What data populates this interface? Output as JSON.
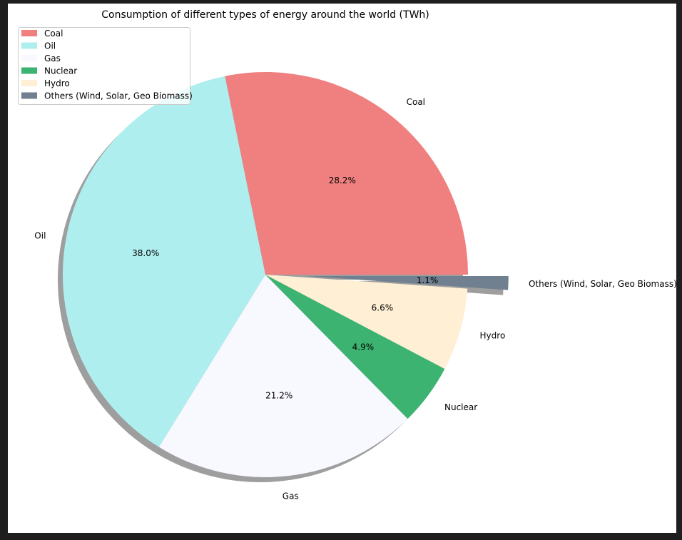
{
  "chart_data": {
    "type": "pie",
    "title": "Consumption of different types of energy around the world (TWh)",
    "categories": [
      "Coal",
      "Oil",
      "Gas",
      "Nuclear",
      "Hydro",
      "Others (Wind, Solar, Geo Biomass)"
    ],
    "values": [
      28.2,
      38.0,
      21.2,
      4.9,
      6.6,
      1.1
    ],
    "value_labels": [
      "28.2%",
      "38.0%",
      "21.2%",
      "4.9%",
      "6.6%",
      "1.1%"
    ],
    "colors": [
      "#f08080",
      "#afeeee",
      "#f8f8ff",
      "#3cb371",
      "#ffefd5",
      "#708090"
    ],
    "explode": [
      0,
      0,
      0,
      0,
      0,
      0.2
    ],
    "shadow": true,
    "start_angle_deg": 0,
    "direction": "counterclockwise",
    "legend": {
      "placement": "top-left",
      "entries": [
        "Coal",
        "Oil",
        "Gas",
        "Nuclear",
        "Hydro",
        "Others (Wind, Solar, Geo Biomass)"
      ]
    }
  }
}
